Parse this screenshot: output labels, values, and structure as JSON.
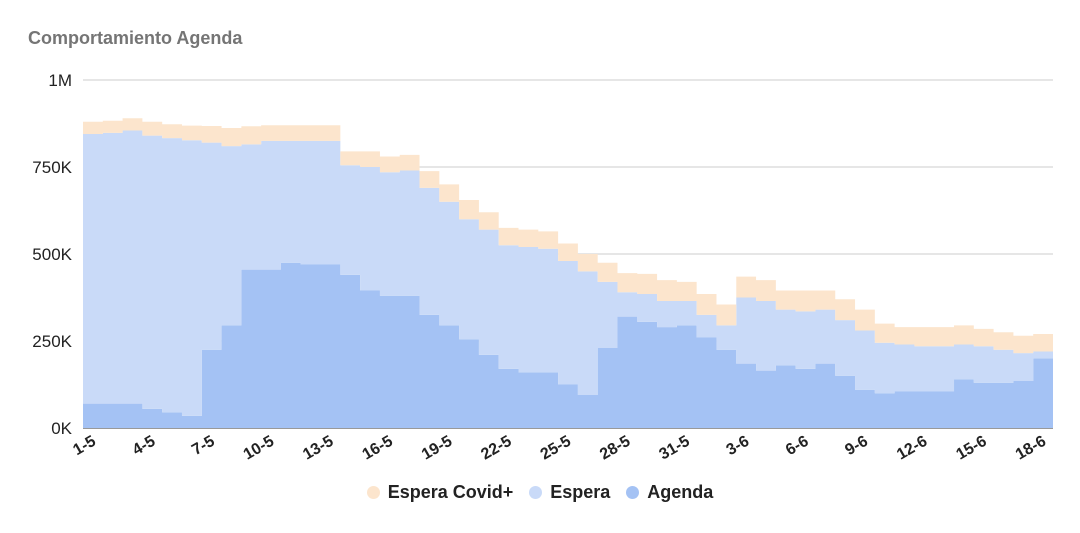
{
  "title": "Comportamiento Agenda",
  "chart_data": {
    "type": "area",
    "stacked": true,
    "step": true,
    "title": "Comportamiento Agenda",
    "ylim": [
      0,
      1000000
    ],
    "yticks": [
      {
        "value": 0,
        "label": "0K"
      },
      {
        "value": 250000,
        "label": "250K"
      },
      {
        "value": 500000,
        "label": "500K"
      },
      {
        "value": 750000,
        "label": "750K"
      },
      {
        "value": 1000000,
        "label": "1M"
      }
    ],
    "x": [
      "1-5",
      "2-5",
      "3-5",
      "4-5",
      "5-5",
      "6-5",
      "7-5",
      "8-5",
      "9-5",
      "10-5",
      "11-5",
      "12-5",
      "13-5",
      "14-5",
      "15-5",
      "16-5",
      "17-5",
      "18-5",
      "19-5",
      "20-5",
      "21-5",
      "22-5",
      "23-5",
      "24-5",
      "25-5",
      "26-5",
      "27-5",
      "28-5",
      "29-5",
      "30-5",
      "31-5",
      "1-6",
      "2-6",
      "3-6",
      "4-6",
      "5-6",
      "6-6",
      "7-6",
      "8-6",
      "9-6",
      "10-6",
      "11-6",
      "12-6",
      "13-6",
      "14-6",
      "15-6",
      "16-6",
      "17-6",
      "18-6"
    ],
    "xtick_labels": [
      "1-5",
      "4-5",
      "7-5",
      "10-5",
      "13-5",
      "16-5",
      "19-5",
      "22-5",
      "25-5",
      "28-5",
      "31-5",
      "3-6",
      "6-6",
      "9-6",
      "12-6",
      "15-6",
      "18-6"
    ],
    "legend_position": "bottom",
    "grid": true,
    "series": [
      {
        "name": "Agenda",
        "color": "#a4c2f4",
        "values": [
          70000,
          70000,
          70000,
          55000,
          45000,
          35000,
          225000,
          295000,
          455000,
          455000,
          475000,
          470000,
          470000,
          440000,
          395000,
          380000,
          380000,
          325000,
          295000,
          255000,
          210000,
          170000,
          160000,
          160000,
          125000,
          95000,
          230000,
          320000,
          305000,
          290000,
          295000,
          260000,
          225000,
          185000,
          165000,
          180000,
          170000,
          185000,
          150000,
          110000,
          100000,
          105000,
          105000,
          105000,
          140000,
          130000,
          130000,
          135000,
          200000
        ]
      },
      {
        "name": "Espera",
        "color": "#c9daf8",
        "values": [
          775000,
          778000,
          785000,
          785000,
          788000,
          792000,
          595000,
          515000,
          360000,
          370000,
          350000,
          355000,
          355000,
          315000,
          355000,
          355000,
          360000,
          365000,
          355000,
          345000,
          360000,
          355000,
          360000,
          355000,
          355000,
          355000,
          190000,
          70000,
          80000,
          75000,
          70000,
          65000,
          70000,
          190000,
          200000,
          160000,
          165000,
          155000,
          160000,
          170000,
          145000,
          135000,
          130000,
          130000,
          100000,
          105000,
          95000,
          80000,
          20000
        ]
      },
      {
        "name": "Espera Covid+",
        "color": "#fce5cd",
        "values": [
          35000,
          35000,
          35000,
          40000,
          40000,
          42000,
          48000,
          52000,
          52000,
          45000,
          45000,
          45000,
          45000,
          40000,
          45000,
          45000,
          45000,
          48000,
          50000,
          55000,
          50000,
          50000,
          50000,
          50000,
          50000,
          50000,
          55000,
          55000,
          58000,
          60000,
          55000,
          60000,
          60000,
          60000,
          60000,
          55000,
          60000,
          55000,
          60000,
          60000,
          55000,
          50000,
          55000,
          55000,
          55000,
          50000,
          50000,
          50000,
          50000
        ]
      }
    ]
  },
  "legend": [
    {
      "label": "Espera Covid+",
      "color": "#fce5cd"
    },
    {
      "label": "Espera",
      "color": "#c9daf8"
    },
    {
      "label": "Agenda",
      "color": "#a4c2f4"
    }
  ]
}
